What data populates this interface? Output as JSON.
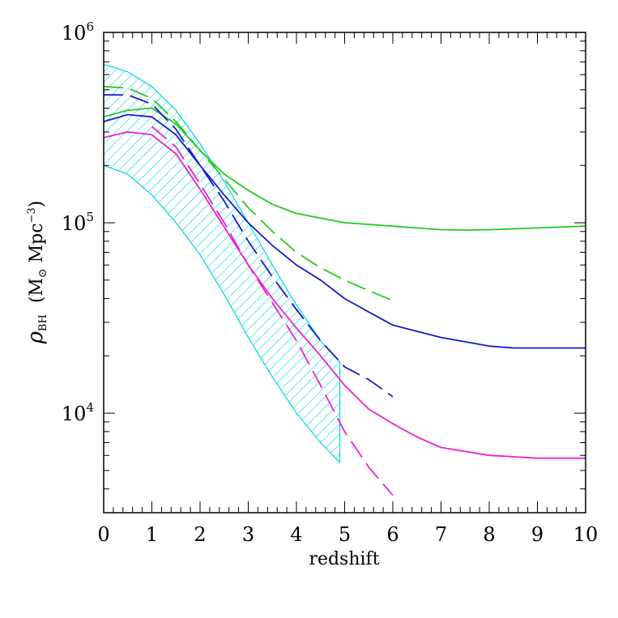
{
  "chart_data": {
    "type": "line",
    "xlabel": "redshift",
    "ylabel": {
      "symbol": "ρ",
      "subscript": "BH",
      "unit_open": "(M",
      "unit_sun": "⊙",
      "unit_mid": " Mpc",
      "unit_exp": "−3",
      "unit_close": ")"
    },
    "xlim": [
      0,
      10
    ],
    "ylim": [
      3000,
      1000000
    ],
    "yscale": "log",
    "grid": false,
    "legend": "none",
    "x_ticks": [
      {
        "value": 0,
        "label": "0"
      },
      {
        "value": 1,
        "label": "1"
      },
      {
        "value": 2,
        "label": "2"
      },
      {
        "value": 3,
        "label": "3"
      },
      {
        "value": 4,
        "label": "4"
      },
      {
        "value": 5,
        "label": "5"
      },
      {
        "value": 6,
        "label": "6"
      },
      {
        "value": 7,
        "label": "7"
      },
      {
        "value": 8,
        "label": "8"
      },
      {
        "value": 9,
        "label": "9"
      },
      {
        "value": 10,
        "label": "10"
      }
    ],
    "y_ticks": [
      {
        "value": 10000,
        "base": "10",
        "exp": "4"
      },
      {
        "value": 100000,
        "base": "10",
        "exp": "5"
      },
      {
        "value": 1000000,
        "base": "10",
        "exp": "6"
      }
    ],
    "band": {
      "color": "#00d4e8",
      "x": [
        0,
        0.5,
        1,
        1.5,
        2,
        2.5,
        3,
        3.5,
        4,
        4.5,
        4.9
      ],
      "upper": [
        680000,
        620000,
        520000,
        390000,
        260000,
        165000,
        100000,
        60000,
        37000,
        24000,
        18500
      ],
      "lower": [
        200000,
        180000,
        140000,
        100000,
        68000,
        42000,
        25000,
        15500,
        10000,
        7000,
        5500
      ]
    },
    "series": [
      {
        "color": "#22cc22",
        "style": "solid",
        "x": [
          0,
          0.5,
          1,
          1.5,
          2,
          2.5,
          3,
          3.5,
          4,
          5,
          6,
          7,
          7.5,
          8,
          9,
          10
        ],
        "y": [
          360000,
          390000,
          400000,
          330000,
          240000,
          180000,
          148000,
          125000,
          112000,
          100000,
          96000,
          92000,
          91500,
          92000,
          94000,
          96000
        ]
      },
      {
        "color": "#22cc22",
        "style": "dashed",
        "x": [
          0,
          0.5,
          1,
          1.5,
          2,
          2.5,
          3,
          3.5,
          4,
          4.5,
          5,
          5.5,
          6
        ],
        "y": [
          520000,
          510000,
          450000,
          340000,
          240000,
          170000,
          120000,
          90000,
          70000,
          58000,
          50000,
          44000,
          39000
        ]
      },
      {
        "color": "#1a1acc",
        "style": "solid",
        "x": [
          0,
          0.5,
          1,
          1.5,
          2,
          2.5,
          3,
          3.5,
          4,
          4.5,
          5,
          5.5,
          6,
          7,
          8,
          8.5,
          9,
          10
        ],
        "y": [
          340000,
          370000,
          360000,
          290000,
          200000,
          140000,
          100000,
          76000,
          60000,
          50000,
          40000,
          34000,
          29000,
          25000,
          22500,
          22000,
          22000,
          22000
        ]
      },
      {
        "color": "#1a1acc",
        "style": "dashed",
        "x": [
          0,
          0.5,
          1,
          1.5,
          2,
          2.5,
          3,
          3.5,
          4,
          4.5,
          5,
          5.5,
          6
        ],
        "y": [
          470000,
          470000,
          420000,
          310000,
          200000,
          130000,
          80000,
          52000,
          35000,
          24000,
          17500,
          15000,
          12200
        ]
      },
      {
        "color": "#ee22cc",
        "style": "solid",
        "x": [
          0,
          0.5,
          1,
          1.5,
          2,
          2.5,
          3,
          3.5,
          4,
          4.5,
          5,
          5.5,
          6,
          6.5,
          7,
          8,
          9,
          10
        ],
        "y": [
          280000,
          300000,
          290000,
          230000,
          150000,
          95000,
          60000,
          40000,
          28000,
          20000,
          14000,
          10500,
          8800,
          7500,
          6600,
          6000,
          5800,
          5800
        ]
      },
      {
        "color": "#ee22cc",
        "style": "dashed",
        "x": [
          1,
          1.5,
          2,
          2.5,
          3,
          3.5,
          4,
          4.5,
          5,
          5.5,
          6
        ],
        "y": [
          320000,
          250000,
          160000,
          100000,
          60000,
          38000,
          24000,
          14000,
          8000,
          5200,
          3700
        ]
      }
    ]
  }
}
